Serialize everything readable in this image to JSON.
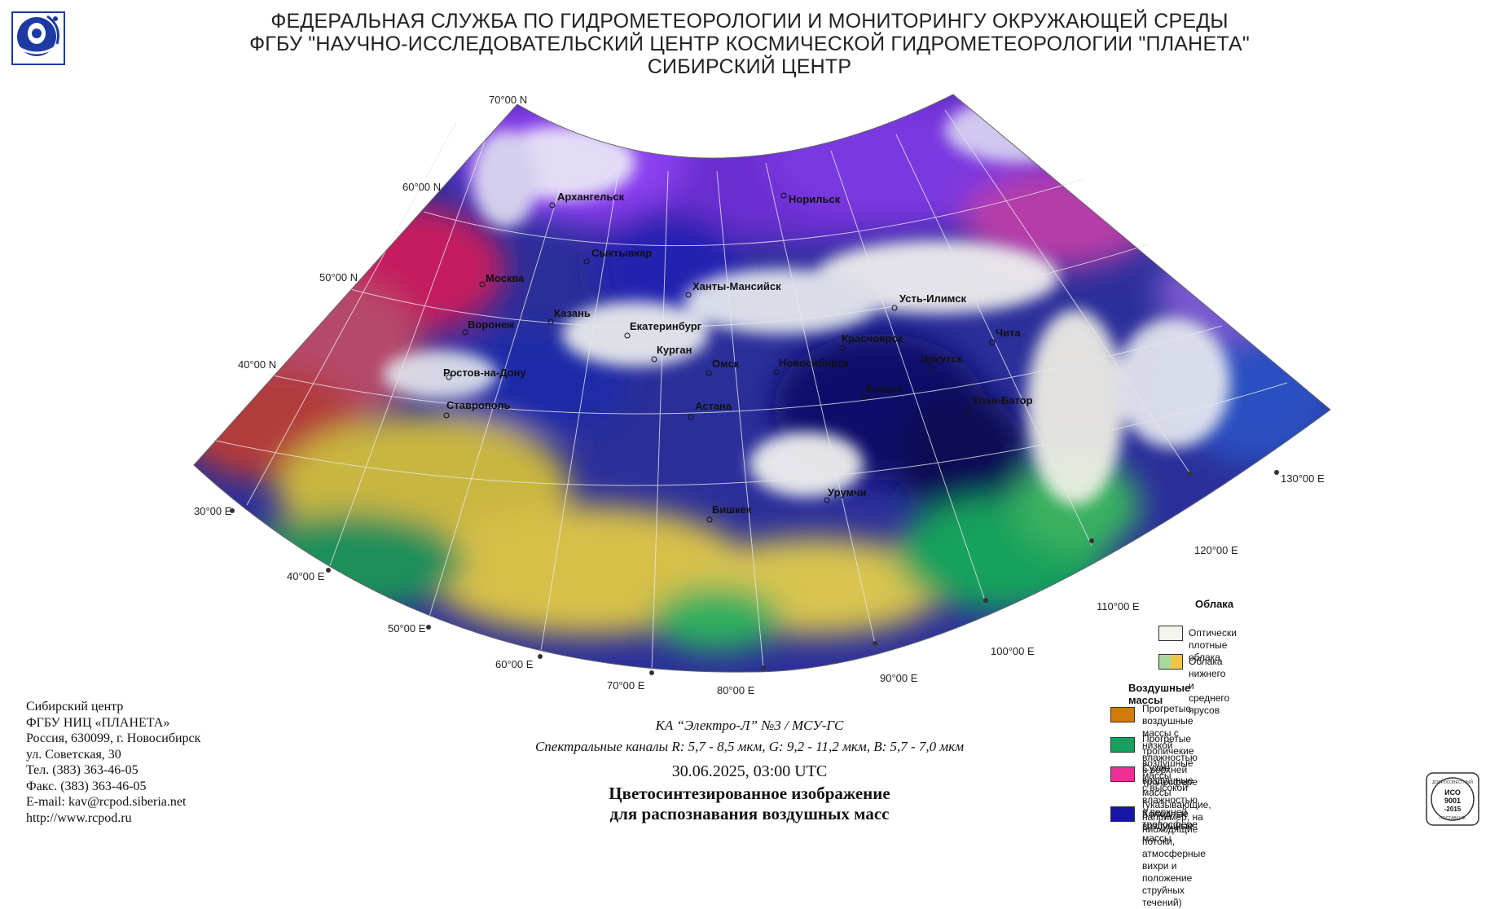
{
  "header": {
    "line1": "ФЕДЕРАЛЬНАЯ СЛУЖБА ПО ГИДРОМЕТЕОРОЛОГИИ И МОНИТОРИНГУ ОКРУЖАЮЩЕЙ СРЕДЫ",
    "line2": "ФГБУ \"НАУЧНО-ИССЛЕДОВАТЕЛЬСКИЙ ЦЕНТР КОСМИЧЕСКОЙ ГИДРОМЕТЕОРОЛОГИИ \"ПЛАНЕТА\"",
    "line3": "СИБИРСКИЙ ЦЕНТР"
  },
  "map": {
    "lat_labels": [
      "70°00 N",
      "60°00 N",
      "50°00 N",
      "40°00 N"
    ],
    "lon_labels": [
      "30°00 E",
      "40°00 E",
      "50°00 E",
      "60°00 E",
      "70°00 E",
      "80°00 E",
      "90°00 E",
      "100°00 E",
      "110°00 E",
      "120°00 E",
      "130°00 E"
    ],
    "cities": [
      "Архангельск",
      "Норильск",
      "Сыктывкар",
      "Москва",
      "Ханты-Мансийск",
      "Усть-Илимск",
      "Казань",
      "Воронеж",
      "Екатеринбург",
      "Красноярск",
      "Чита",
      "Курган",
      "Омск",
      "Новосибирск",
      "Иркутск",
      "Ростов-на-Дону",
      "Кызыл",
      "Улан-Батор",
      "Ставрополь",
      "Астана",
      "Урумчи",
      "Бишкек"
    ]
  },
  "organization": {
    "lines": [
      "Сибирский центр",
      "ФГБУ НИЦ «ПЛАНЕТА»",
      "Россия, 630099, г. Новосибирск",
      "ул. Советская, 30",
      "Тел. (383) 363-46-05",
      "Факс. (383) 363-46-05",
      "E-mail: kav@rcpod.siberia.net",
      "http://www.rcpod.ru"
    ]
  },
  "caption": {
    "satellite": "КА “Электро-Л” №3 / МСУ-ГС",
    "channels": "Спектральные каналы R: 5,7 - 8,5 мкм, G: 9,2 - 11,2 мкм, B: 5,7 - 7,0 мкм",
    "datetime": "30.06.2025, 03:00 UTC",
    "title1": "Цветосинтезированное изображение",
    "title2": "для распознавания воздушных масс"
  },
  "legend": {
    "clouds_title": "Облака",
    "dense_clouds": "Оптически плотные облака",
    "low_mid_clouds": "Облака нижнего и среднего ярусов",
    "air_masses_title": "Воздушные массы",
    "warm_dry": "Прогретые воздушные массы с низкой влажностью в верхней тропосфере",
    "warm_dry_1": "Прогретые воздушные массы с низкой",
    "warm_dry_2": "влажностью в верхней тропосфере",
    "tropical_1": "Прогретые тропичекие воздушные массы",
    "tropical_2": "с высокой влажностью в верхней тропосфере",
    "dry_1": "Сухие воздушные массы (указывающие, например, на",
    "dry_2": "нисходящие потоки, атмосферные вихри и положение",
    "dry_3": "струйных течений)",
    "cold": "Холодные воздушные массы",
    "colors": {
      "dense_clouds": "#f4f4ec",
      "low_mid_left": "#a9d99a",
      "low_mid_right": "#f0c64a",
      "warm_dry": "#d4790a",
      "tropical": "#13a15e",
      "dry": "#ee2f96",
      "cold": "#1616a8"
    }
  },
  "cert": {
    "top_text": "ДОБРОСОВЕСТНЫЙ",
    "line1": "ИСО",
    "line2": "9001",
    "line3": "-2015",
    "bottom_text": "ПОСТАВЩИК"
  }
}
